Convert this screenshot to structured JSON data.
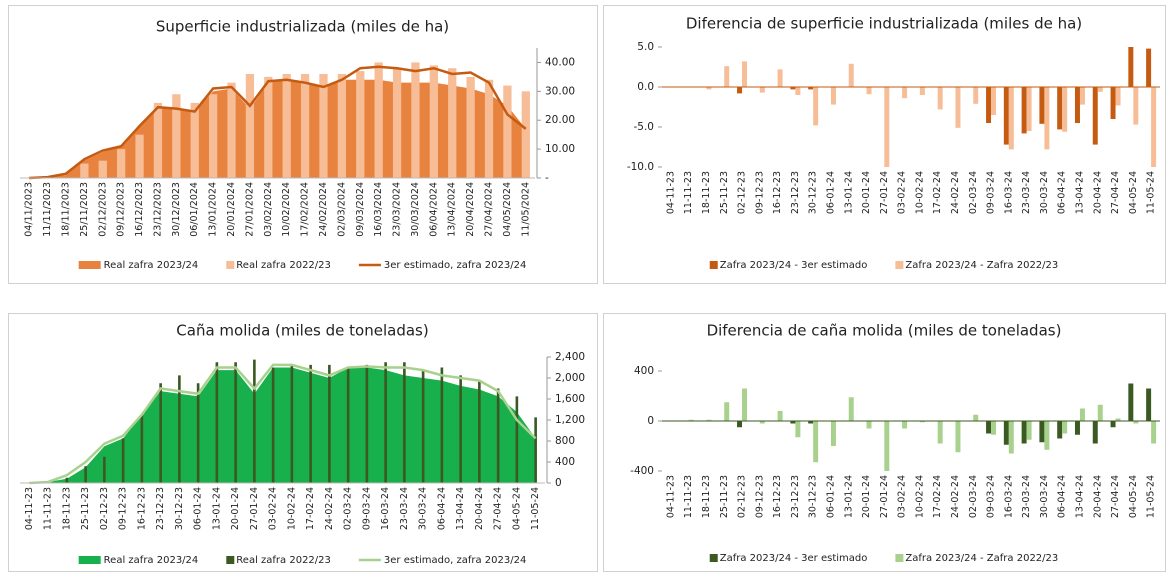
{
  "chart_data": [
    {
      "type": "combo",
      "title": "Superficie industrializada (miles de ha)",
      "title_color": "#8b3a0e",
      "y_axis_position": "right",
      "categories": [
        "04/11/2023",
        "11/11/2023",
        "18/11/2023",
        "25/11/2023",
        "02/12/2023",
        "09/12/2023",
        "16/12/2023",
        "23/12/2023",
        "30/12/2023",
        "06/01/2024",
        "13/01/2024",
        "20/01/2024",
        "27/01/2024",
        "03/02/2024",
        "10/02/2024",
        "17/02/2024",
        "24/02/2024",
        "02/03/2024",
        "09/03/2024",
        "16/03/2024",
        "23/03/2024",
        "30/03/2024",
        "06/04/2024",
        "13/04/2024",
        "20/04/2024",
        "27/04/2024",
        "04/05/2024",
        "11/05/2024"
      ],
      "ylim": [
        0,
        45
      ],
      "yticks": [
        {
          "value": 0,
          "label": "-"
        },
        {
          "value": 10,
          "label": "10.00"
        },
        {
          "value": 20,
          "label": "20.00"
        },
        {
          "value": 30,
          "label": "30.00"
        },
        {
          "value": 40,
          "label": "40.00"
        }
      ],
      "series": [
        {
          "name": "Real zafra 2023/24",
          "type": "area",
          "color": "#e8823f",
          "values": [
            0,
            0.3,
            1,
            6,
            9,
            11,
            18,
            24,
            24,
            23,
            30,
            31,
            24,
            33,
            34,
            33,
            31,
            34,
            34,
            34,
            33,
            33,
            33,
            32,
            31,
            29,
            25,
            17
          ]
        },
        {
          "name": "Real zafra 2022/23",
          "type": "bar",
          "color": "#f6bd96",
          "values": [
            0,
            0,
            0,
            5,
            6,
            10,
            15,
            26,
            29,
            26,
            29,
            33,
            36,
            35,
            36,
            36,
            36,
            36,
            37,
            40,
            38,
            40,
            39,
            38,
            35,
            34,
            32,
            30
          ]
        },
        {
          "name": "3er estimado, zafra 2023/24",
          "type": "line",
          "color": "#c55a11",
          "values": [
            0,
            0.3,
            1.5,
            6.5,
            9.5,
            11,
            18,
            24.5,
            24,
            23,
            31,
            31.5,
            25,
            33.5,
            34,
            33,
            31.5,
            34,
            38,
            38.5,
            38,
            37,
            38,
            36,
            36.5,
            33,
            22,
            17
          ]
        }
      ]
    },
    {
      "type": "combo",
      "title": "Diferencia de superficie industrializada (miles de ha)",
      "title_color": "#8b3a0e",
      "y_axis_position": "left",
      "categories": [
        "04-11-23",
        "11-11-23",
        "18-11-23",
        "25-11-23",
        "02-12-23",
        "09-12-23",
        "16-12-23",
        "23-12-23",
        "30-12-23",
        "06-01-24",
        "13-01-24",
        "20-01-24",
        "27-01-24",
        "03-02-24",
        "10-02-24",
        "17-02-24",
        "24-02-24",
        "02-03-24",
        "09-03-24",
        "16-03-24",
        "23-03-24",
        "30-03-24",
        "06-04-24",
        "13-04-24",
        "20-04-24",
        "27-04-24",
        "04-05-24",
        "11-05-24"
      ],
      "ylim": [
        -10,
        5
      ],
      "yticks": [
        {
          "value": -10,
          "label": "-10.0"
        },
        {
          "value": -5,
          "label": "-5.0"
        },
        {
          "value": 0,
          "label": "0.0"
        },
        {
          "value": 5,
          "label": "5.0"
        }
      ],
      "series": [
        {
          "name": "Zafra 2023/24 - 3er estimado",
          "type": "bar",
          "color": "#c55a11",
          "values": [
            0,
            0,
            0,
            0,
            -0.8,
            0,
            0,
            -0.3,
            -0.3,
            0,
            0,
            0,
            0,
            0,
            0,
            0,
            0,
            0,
            -4.5,
            -7.2,
            -5.8,
            -4.6,
            -5.3,
            -4.5,
            -7.2,
            -4,
            5,
            4.8
          ]
        },
        {
          "name": "Zafra 2023/24 - Zafra 2022/23",
          "type": "bar",
          "color": "#f6bd96",
          "values": [
            0,
            0,
            -0.3,
            2.6,
            3.2,
            -0.7,
            2.2,
            -1,
            -4.8,
            -2.2,
            2.9,
            -0.9,
            -10,
            -1.4,
            -1,
            -2.8,
            -5.1,
            -2.1,
            -3.5,
            -7.8,
            -5.5,
            -7.8,
            -5.6,
            -2.2,
            -0.6,
            -2.3,
            -4.7,
            -10
          ]
        }
      ]
    },
    {
      "type": "combo",
      "title": "Caña molida (miles de toneladas)",
      "title_color": "#1f3b10",
      "y_axis_position": "right",
      "categories": [
        "04-11-23",
        "11-11-23",
        "18-11-23",
        "25-11-23",
        "02-12-23",
        "09-12-23",
        "16-12-23",
        "23-12-23",
        "30-12-23",
        "06-01-24",
        "13-01-24",
        "20-01-24",
        "27-01-24",
        "03-02-24",
        "10-02-24",
        "17-02-24",
        "24-02-24",
        "02-03-24",
        "09-03-24",
        "16-03-24",
        "23-03-24",
        "30-03-24",
        "06-04-24",
        "13-04-24",
        "20-04-24",
        "27-04-24",
        "04-05-24",
        "11-05-24"
      ],
      "ylim": [
        0,
        2400
      ],
      "yticks": [
        0,
        400,
        800,
        {
          "value": 1200,
          "label": "1,200"
        },
        {
          "value": 1600,
          "label": "1,600"
        },
        {
          "value": 2000,
          "label": "2,000"
        },
        {
          "value": 2400,
          "label": "2,400"
        }
      ],
      "series": [
        {
          "name": "Real zafra 2023/24",
          "type": "area",
          "color": "#17b04c",
          "values": [
            0,
            20,
            80,
            300,
            700,
            850,
            1300,
            1750,
            1700,
            1650,
            2150,
            2150,
            1700,
            2200,
            2200,
            2100,
            2000,
            2200,
            2200,
            2150,
            2050,
            2000,
            1950,
            1850,
            1780,
            1650,
            1350,
            850
          ]
        },
        {
          "name": "Real zafra 2022/23",
          "type": "bar",
          "color": "#3b5a23",
          "values": [
            0,
            0,
            100,
            320,
            500,
            850,
            1300,
            1900,
            2050,
            1900,
            2300,
            2300,
            2350,
            2200,
            2250,
            2250,
            2250,
            2200,
            2250,
            2300,
            2300,
            2150,
            2200,
            2050,
            1950,
            1800,
            1650,
            1250
          ]
        },
        {
          "name": "3er estimado, zafra 2023/24",
          "type": "line",
          "color": "#a9d18e",
          "values": [
            0,
            20,
            150,
            400,
            750,
            900,
            1300,
            1800,
            1750,
            1700,
            2200,
            2200,
            1800,
            2250,
            2250,
            2150,
            2050,
            2200,
            2220,
            2200,
            2200,
            2150,
            2050,
            2000,
            1950,
            1750,
            1200,
            850
          ]
        }
      ]
    },
    {
      "type": "combo",
      "title": "Diferencia de caña molida (miles de toneladas)",
      "title_color": "#1f3b10",
      "y_axis_position": "left",
      "categories": [
        "04-11-23",
        "11-11-23",
        "18-11-23",
        "25-11-23",
        "02-12-23",
        "09-12-23",
        "16-12-23",
        "23-12-23",
        "30-12-23",
        "06-01-24",
        "13-01-24",
        "20-01-24",
        "27-01-24",
        "03-02-24",
        "10-02-24",
        "17-02-24",
        "24-02-24",
        "02-03-24",
        "09-03-24",
        "16-03-24",
        "23-03-24",
        "30-03-24",
        "06-04-24",
        "13-04-24",
        "20-04-24",
        "27-04-24",
        "04-05-24",
        "11-05-24"
      ],
      "ylim": [
        -400,
        400
      ],
      "yticks": [
        -400,
        0,
        400
      ],
      "series": [
        {
          "name": "Zafra 2023/24 - 3er estimado",
          "type": "bar",
          "color": "#3b5a23",
          "values": [
            0,
            0,
            0,
            0,
            -50,
            0,
            0,
            -20,
            -20,
            0,
            0,
            0,
            0,
            0,
            0,
            0,
            0,
            0,
            -100,
            -190,
            -180,
            -170,
            -140,
            -110,
            -180,
            -50,
            300,
            260
          ]
        },
        {
          "name": "Zafra 2023/24 - Zafra 2022/23",
          "type": "bar",
          "color": "#a9d18e",
          "values": [
            0,
            10,
            10,
            150,
            260,
            -20,
            80,
            -130,
            -330,
            -200,
            190,
            -60,
            -400,
            -60,
            -10,
            -180,
            -250,
            50,
            -110,
            -260,
            -150,
            -230,
            -100,
            100,
            130,
            20,
            -20,
            -180
          ]
        }
      ]
    }
  ]
}
